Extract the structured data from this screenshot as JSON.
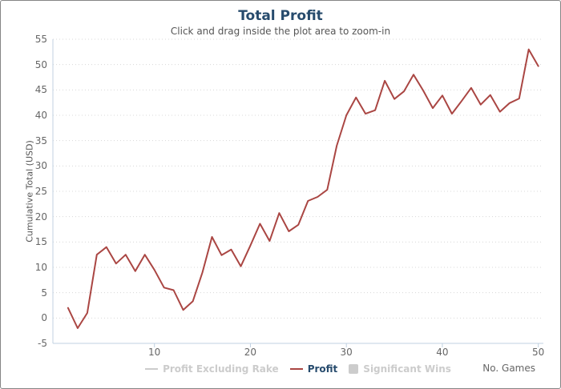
{
  "header": {
    "title": "Total Profit",
    "subtitle": "Click and drag inside the plot area to zoom-in"
  },
  "colors": {
    "title_color": "#274b6d",
    "subtitle_color": "#555555",
    "axis_label_color": "#666666",
    "axis_title_color": "#555555",
    "axis_line_color": "#c0d0e0",
    "grid_color": "#d8d8d8",
    "legend_active": "#274b6d",
    "legend_hidden": "#cccccc",
    "profit_line": "#aa4643"
  },
  "chart_data": {
    "type": "line",
    "title": "Total Profit",
    "subtitle": "Click and drag inside the plot area to zoom-in",
    "xlabel": "No. Games",
    "ylabel": "Cumulative Total (USD)",
    "xlim": [
      1,
      50
    ],
    "ylim": [
      -5,
      55
    ],
    "x_ticks": [
      10,
      20,
      30,
      40,
      50
    ],
    "y_ticks": [
      -5,
      0,
      5,
      10,
      15,
      20,
      25,
      30,
      35,
      40,
      45,
      50,
      55
    ],
    "grid": "horizontal dotted gridlines on",
    "legend_position": "bottom-center",
    "x": [
      1,
      2,
      3,
      4,
      5,
      6,
      7,
      8,
      9,
      10,
      11,
      12,
      13,
      14,
      15,
      16,
      17,
      18,
      19,
      20,
      21,
      22,
      23,
      24,
      25,
      26,
      27,
      28,
      29,
      30,
      31,
      32,
      33,
      34,
      35,
      36,
      37,
      38,
      39,
      40,
      41,
      42,
      43,
      44,
      45,
      46,
      47,
      48,
      49,
      50
    ],
    "series": [
      {
        "name": "Profit Excluding Rake",
        "visible": false,
        "color": "#cccccc",
        "symbol": "line",
        "values": []
      },
      {
        "name": "Profit",
        "visible": true,
        "color": "#aa4643",
        "symbol": "line",
        "values": [
          2,
          -2,
          1,
          12.5,
          14,
          10.75,
          12.5,
          9.25,
          12.5,
          9.5,
          6,
          5.5,
          1.6,
          3.3,
          9,
          16,
          12.4,
          13.5,
          10.2,
          14.3,
          18.6,
          15.2,
          20.7,
          17.1,
          18.4,
          23.1,
          23.9,
          25.3,
          34,
          40,
          43.5,
          40.3,
          41,
          46.8,
          43.2,
          44.7,
          48,
          44.9,
          41.4,
          43.9,
          40.3,
          42.8,
          45.4,
          42.1,
          44,
          40.7,
          42.4,
          43.3,
          53,
          49.7
        ]
      },
      {
        "name": "Significant Wins",
        "visible": false,
        "color": "#cccccc",
        "symbol": "square",
        "values": []
      }
    ]
  }
}
